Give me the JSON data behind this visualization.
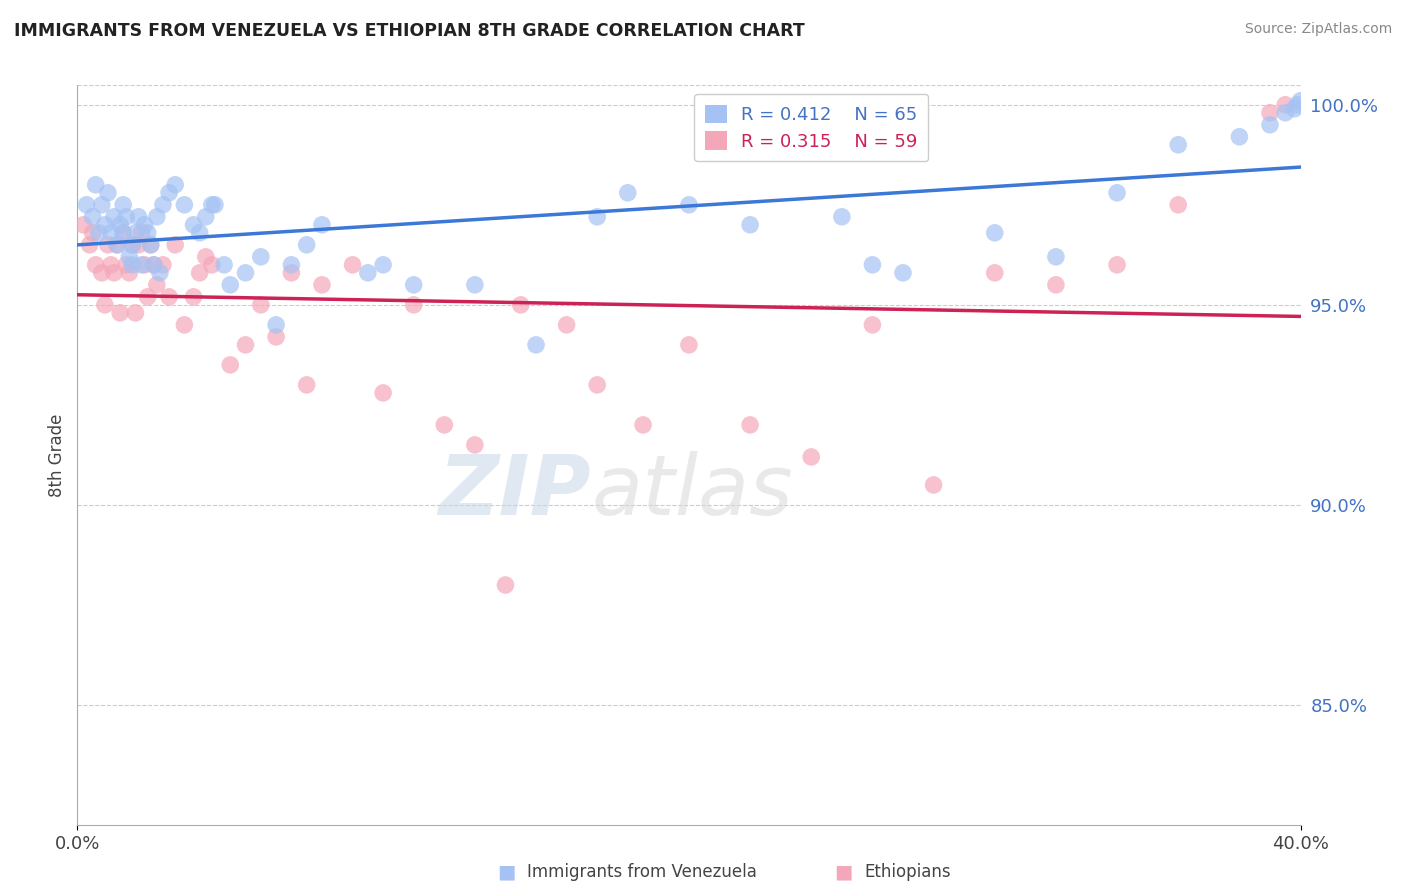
{
  "title": "IMMIGRANTS FROM VENEZUELA VS ETHIOPIAN 8TH GRADE CORRELATION CHART",
  "source": "Source: ZipAtlas.com",
  "ylabel": "8th Grade",
  "xlim": [
    0.0,
    0.4
  ],
  "ylim": [
    0.82,
    1.005
  ],
  "ytick_labels": [
    "85.0%",
    "90.0%",
    "95.0%",
    "100.0%"
  ],
  "ytick_values": [
    0.85,
    0.9,
    0.95,
    1.0
  ],
  "blue_color": "#a4c2f4",
  "pink_color": "#f4a7b9",
  "blue_line_color": "#3c78d8",
  "pink_line_color": "#cc2255",
  "blue_x": [
    0.003,
    0.005,
    0.006,
    0.007,
    0.008,
    0.009,
    0.01,
    0.011,
    0.012,
    0.013,
    0.014,
    0.015,
    0.015,
    0.016,
    0.017,
    0.018,
    0.018,
    0.019,
    0.02,
    0.021,
    0.022,
    0.023,
    0.024,
    0.025,
    0.026,
    0.027,
    0.028,
    0.03,
    0.032,
    0.035,
    0.038,
    0.04,
    0.042,
    0.044,
    0.048,
    0.055,
    0.06,
    0.065,
    0.07,
    0.08,
    0.095,
    0.1,
    0.11,
    0.13,
    0.15,
    0.17,
    0.2,
    0.22,
    0.25,
    0.27,
    0.3,
    0.32,
    0.34,
    0.36,
    0.38,
    0.39,
    0.395,
    0.398,
    0.399,
    0.4,
    0.05,
    0.045,
    0.075,
    0.18,
    0.26
  ],
  "blue_y": [
    0.975,
    0.972,
    0.98,
    0.968,
    0.975,
    0.97,
    0.978,
    0.968,
    0.972,
    0.965,
    0.97,
    0.975,
    0.968,
    0.972,
    0.962,
    0.96,
    0.965,
    0.968,
    0.972,
    0.96,
    0.97,
    0.968,
    0.965,
    0.96,
    0.972,
    0.958,
    0.975,
    0.978,
    0.98,
    0.975,
    0.97,
    0.968,
    0.972,
    0.975,
    0.96,
    0.958,
    0.962,
    0.945,
    0.96,
    0.97,
    0.958,
    0.96,
    0.955,
    0.955,
    0.94,
    0.972,
    0.975,
    0.97,
    0.972,
    0.958,
    0.968,
    0.962,
    0.978,
    0.99,
    0.992,
    0.995,
    0.998,
    0.999,
    1.0,
    1.001,
    0.955,
    0.975,
    0.965,
    0.978,
    0.96
  ],
  "pink_x": [
    0.002,
    0.004,
    0.006,
    0.008,
    0.009,
    0.01,
    0.011,
    0.012,
    0.013,
    0.014,
    0.015,
    0.016,
    0.017,
    0.018,
    0.019,
    0.02,
    0.021,
    0.022,
    0.023,
    0.024,
    0.025,
    0.026,
    0.028,
    0.03,
    0.032,
    0.035,
    0.038,
    0.04,
    0.042,
    0.044,
    0.05,
    0.055,
    0.06,
    0.065,
    0.07,
    0.08,
    0.09,
    0.1,
    0.11,
    0.12,
    0.13,
    0.145,
    0.16,
    0.17,
    0.185,
    0.2,
    0.22,
    0.24,
    0.26,
    0.28,
    0.3,
    0.32,
    0.34,
    0.36,
    0.39,
    0.395,
    0.005,
    0.075,
    0.14
  ],
  "pink_y": [
    0.97,
    0.965,
    0.96,
    0.958,
    0.95,
    0.965,
    0.96,
    0.958,
    0.965,
    0.948,
    0.968,
    0.96,
    0.958,
    0.965,
    0.948,
    0.965,
    0.968,
    0.96,
    0.952,
    0.965,
    0.96,
    0.955,
    0.96,
    0.952,
    0.965,
    0.945,
    0.952,
    0.958,
    0.962,
    0.96,
    0.935,
    0.94,
    0.95,
    0.942,
    0.958,
    0.955,
    0.96,
    0.928,
    0.95,
    0.92,
    0.915,
    0.95,
    0.945,
    0.93,
    0.92,
    0.94,
    0.92,
    0.912,
    0.945,
    0.905,
    0.958,
    0.955,
    0.96,
    0.975,
    0.998,
    1.0,
    0.968,
    0.93,
    0.88
  ]
}
